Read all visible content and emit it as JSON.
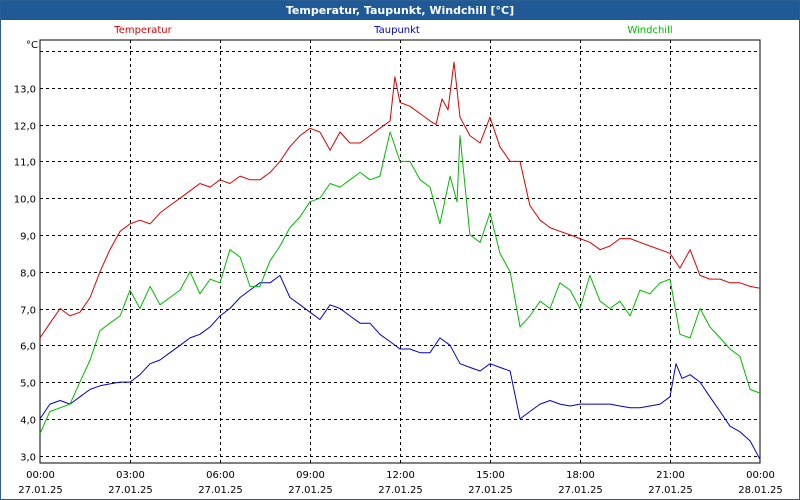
{
  "window": {
    "title": "Temperatur, Taupunkt, Windchill [°C]"
  },
  "chart_data": {
    "type": "line",
    "title": "Temperatur, Taupunkt, Windchill [°C]",
    "ylabel": "°C",
    "xlabel": "",
    "ylim": [
      2.8,
      14.3
    ],
    "xlim": [
      0,
      24
    ],
    "grid": true,
    "legend": "top",
    "yticks": [
      "3,0",
      "4,0",
      "5,0",
      "6,0",
      "7,0",
      "8,0",
      "9,0",
      "10,0",
      "11,0",
      "12,0",
      "13,0"
    ],
    "ytick_values": [
      3,
      4,
      5,
      6,
      7,
      8,
      9,
      10,
      11,
      12,
      13
    ],
    "xticks": [
      {
        "time": "00:00",
        "date": "27.01.25"
      },
      {
        "time": "03:00",
        "date": "27.01.25"
      },
      {
        "time": "06:00",
        "date": "27.01.25"
      },
      {
        "time": "09:00",
        "date": "27.01.25"
      },
      {
        "time": "12:00",
        "date": "27.01.25"
      },
      {
        "time": "15:00",
        "date": "27.01.25"
      },
      {
        "time": "18:00",
        "date": "27.01.25"
      },
      {
        "time": "21:00",
        "date": "27.01.25"
      },
      {
        "time": "00:00",
        "date": "28.01.25"
      }
    ],
    "xtick_values": [
      0,
      3,
      6,
      9,
      12,
      15,
      18,
      21,
      24
    ],
    "series": [
      {
        "name": "Temperatur",
        "color": "#dd0000",
        "x": [
          0,
          0.33,
          0.67,
          1,
          1.33,
          1.67,
          2,
          2.33,
          2.67,
          3,
          3.33,
          3.67,
          4,
          4.33,
          4.67,
          5,
          5.33,
          5.67,
          6,
          6.33,
          6.67,
          7,
          7.33,
          7.67,
          8,
          8.33,
          8.67,
          9,
          9.33,
          9.67,
          10,
          10.33,
          10.67,
          11,
          11.33,
          11.67,
          11.83,
          12,
          12.33,
          12.67,
          13,
          13.2,
          13.4,
          13.6,
          13.8,
          14,
          14.33,
          14.67,
          15,
          15.33,
          15.67,
          16,
          16.33,
          16.67,
          17,
          17.33,
          17.67,
          18,
          18.33,
          18.67,
          19,
          19.33,
          19.67,
          20,
          20.33,
          20.67,
          21,
          21.33,
          21.67,
          22,
          22.33,
          22.67,
          23,
          23.33,
          23.67,
          24
        ],
        "values": [
          6.2,
          6.6,
          7.0,
          6.8,
          6.9,
          7.3,
          8.0,
          8.6,
          9.1,
          9.3,
          9.4,
          9.3,
          9.6,
          9.8,
          10.0,
          10.2,
          10.4,
          10.3,
          10.5,
          10.4,
          10.6,
          10.5,
          10.5,
          10.7,
          11.0,
          11.4,
          11.7,
          11.9,
          11.8,
          11.3,
          11.8,
          11.5,
          11.5,
          11.7,
          11.9,
          12.1,
          13.3,
          12.6,
          12.5,
          12.3,
          12.1,
          12.0,
          12.7,
          12.4,
          13.7,
          12.2,
          11.7,
          11.5,
          12.2,
          11.4,
          11.0,
          11.0,
          9.8,
          9.4,
          9.2,
          9.1,
          9.0,
          8.9,
          8.8,
          8.6,
          8.7,
          8.9,
          8.9,
          8.8,
          8.7,
          8.6,
          8.5,
          8.1,
          8.6,
          7.9,
          7.8,
          7.8,
          7.7,
          7.7,
          7.6,
          7.55
        ]
      },
      {
        "name": "Taupunkt",
        "color": "#0000cc",
        "x": [
          0,
          0.33,
          0.67,
          1,
          1.33,
          1.67,
          2,
          2.33,
          2.67,
          3,
          3.33,
          3.67,
          4,
          4.33,
          4.67,
          5,
          5.33,
          5.67,
          6,
          6.33,
          6.67,
          7,
          7.33,
          7.67,
          8,
          8.33,
          8.67,
          9,
          9.33,
          9.67,
          10,
          10.33,
          10.67,
          11,
          11.33,
          11.67,
          12,
          12.33,
          12.67,
          13,
          13.33,
          13.67,
          14,
          14.33,
          14.67,
          15,
          15.33,
          15.67,
          16,
          16.33,
          16.67,
          17,
          17.33,
          17.67,
          18,
          18.33,
          18.67,
          19,
          19.33,
          19.67,
          20,
          20.33,
          20.67,
          21,
          21.2,
          21.4,
          21.67,
          22,
          22.33,
          22.67,
          23,
          23.33,
          23.67,
          24
        ],
        "values": [
          4.0,
          4.4,
          4.5,
          4.4,
          4.6,
          4.8,
          4.9,
          4.95,
          5.0,
          5.0,
          5.2,
          5.5,
          5.6,
          5.8,
          6.0,
          6.2,
          6.3,
          6.5,
          6.8,
          7.0,
          7.3,
          7.5,
          7.7,
          7.7,
          7.9,
          7.3,
          7.1,
          6.9,
          6.7,
          7.1,
          7.0,
          6.8,
          6.6,
          6.6,
          6.3,
          6.1,
          5.9,
          5.9,
          5.8,
          5.8,
          6.2,
          6.0,
          5.5,
          5.4,
          5.3,
          5.5,
          5.4,
          5.3,
          4.0,
          4.2,
          4.4,
          4.5,
          4.4,
          4.35,
          4.4,
          4.4,
          4.4,
          4.4,
          4.35,
          4.3,
          4.3,
          4.35,
          4.4,
          4.6,
          5.5,
          5.1,
          5.2,
          5.0,
          4.6,
          4.2,
          3.8,
          3.65,
          3.4,
          2.9
        ]
      },
      {
        "name": "Windchill",
        "color": "#00bb00",
        "x": [
          0,
          0.33,
          0.67,
          1,
          1.33,
          1.67,
          2,
          2.33,
          2.67,
          3,
          3.33,
          3.67,
          4,
          4.33,
          4.67,
          5,
          5.33,
          5.67,
          6,
          6.33,
          6.67,
          7,
          7.33,
          7.67,
          8,
          8.33,
          8.67,
          9,
          9.33,
          9.67,
          10,
          10.33,
          10.67,
          11,
          11.33,
          11.67,
          12,
          12.33,
          12.67,
          13,
          13.33,
          13.67,
          13.9,
          14,
          14.33,
          14.67,
          15,
          15.33,
          15.67,
          16,
          16.33,
          16.67,
          17,
          17.33,
          17.67,
          18,
          18.33,
          18.67,
          19,
          19.33,
          19.67,
          20,
          20.33,
          20.67,
          21,
          21.33,
          21.67,
          22,
          22.33,
          22.67,
          23,
          23.33,
          23.67,
          24
        ],
        "values": [
          3.6,
          4.2,
          4.3,
          4.4,
          5.0,
          5.6,
          6.4,
          6.6,
          6.8,
          7.5,
          7.0,
          7.6,
          7.1,
          7.3,
          7.5,
          8.0,
          7.4,
          7.8,
          7.7,
          8.6,
          8.4,
          7.6,
          7.6,
          8.3,
          8.7,
          9.2,
          9.5,
          9.9,
          10.0,
          10.4,
          10.3,
          10.5,
          10.7,
          10.5,
          10.6,
          11.8,
          11.0,
          11.0,
          10.5,
          10.3,
          9.3,
          10.6,
          9.9,
          11.7,
          9.0,
          8.8,
          9.6,
          8.5,
          8.0,
          6.5,
          6.8,
          7.2,
          7.0,
          7.7,
          7.5,
          7.0,
          7.9,
          7.2,
          7.0,
          7.2,
          6.8,
          7.5,
          7.4,
          7.7,
          7.8,
          6.3,
          6.2,
          7.0,
          6.5,
          6.2,
          5.9,
          5.7,
          4.8,
          4.7
        ]
      }
    ]
  }
}
